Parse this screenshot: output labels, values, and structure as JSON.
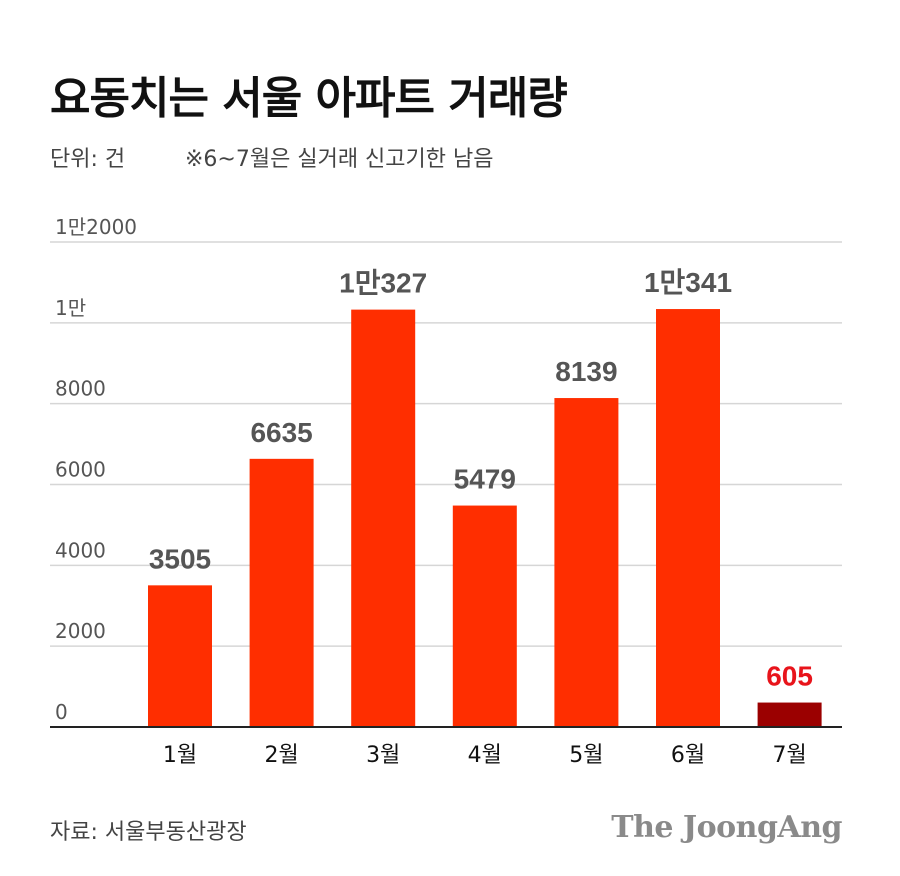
{
  "header": {
    "title": "요동치는 서울 아파트 거래량",
    "unit": "단위: 건",
    "note": "※6~7월은 실거래 신고기한 남음"
  },
  "footer": {
    "source": "자료: 서울부동산광장",
    "brand": "The JoongAng"
  },
  "chart_data": {
    "type": "bar",
    "title": "요동치는 서울 아파트 거래량",
    "categories": [
      "1월",
      "2월",
      "3월",
      "4월",
      "5월",
      "6월",
      "7월"
    ],
    "values": [
      3505,
      6635,
      10327,
      5479,
      8139,
      10341,
      605
    ],
    "data_labels": [
      "3505",
      "6635",
      "1만327",
      "5479",
      "8139",
      "1만341",
      "605"
    ],
    "yticks": [
      0,
      2000,
      4000,
      6000,
      8000,
      10000,
      12000
    ],
    "ytick_labels": [
      "0",
      "2000",
      "4000",
      "6000",
      "8000",
      "1만",
      "1만2000"
    ],
    "ylim": [
      0,
      12000
    ],
    "grid": true,
    "colors": {
      "bar": "#ff2e00",
      "highlight_bar": "#9b0000",
      "highlight_label": "#e8141b",
      "label": "#555555",
      "grid": "#d6d6d6",
      "axis": "#222222"
    },
    "highlight_index": 6
  }
}
